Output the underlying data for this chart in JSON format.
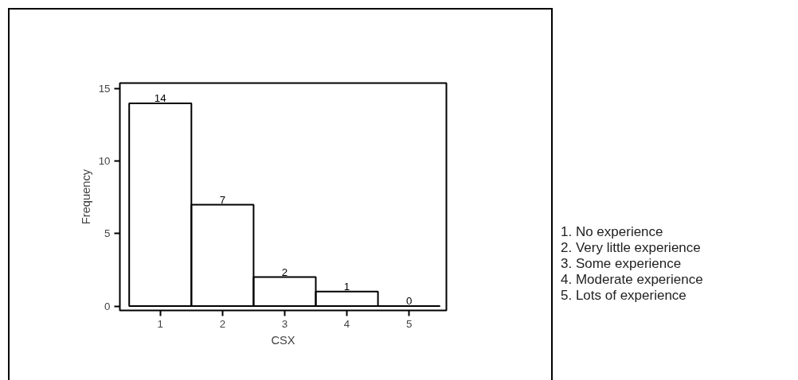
{
  "chart_data": {
    "type": "bar",
    "xlabel": "CSX",
    "ylabel": "Frequency",
    "categories": [
      "1",
      "2",
      "3",
      "4",
      "5"
    ],
    "values": [
      14,
      7,
      2,
      1,
      0
    ],
    "color": "#000000",
    "ylim": [
      -0.3,
      15.4
    ],
    "yticks": [
      0,
      5,
      10,
      15
    ],
    "data_labels": true,
    "grid": false,
    "annotations": [
      "1. No experience",
      "2. Very little experience",
      "3. Some experience",
      "4. Moderate experience",
      "5. Lots of experience"
    ]
  }
}
